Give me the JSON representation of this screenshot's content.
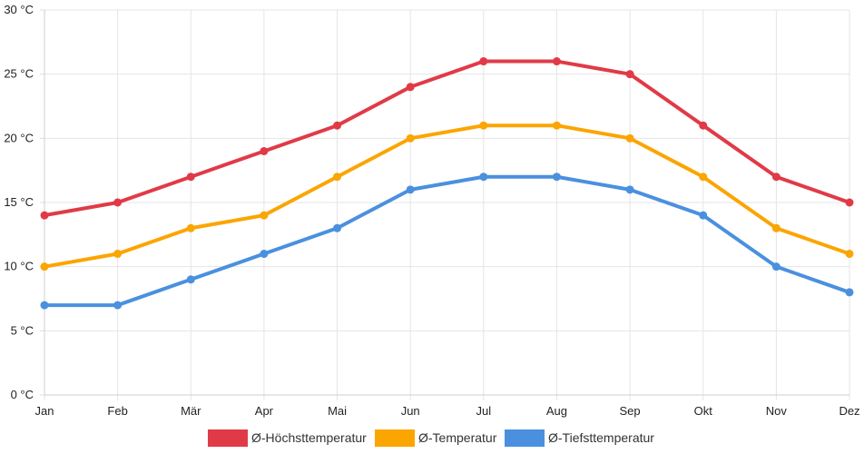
{
  "chart_data": {
    "type": "line",
    "categories": [
      "Jan",
      "Feb",
      "Mär",
      "Apr",
      "Mai",
      "Jun",
      "Jul",
      "Aug",
      "Sep",
      "Okt",
      "Nov",
      "Dez"
    ],
    "series": [
      {
        "name": "Ø-Höchsttemperatur",
        "color": "#E13A47",
        "values": [
          14,
          15,
          17,
          19,
          21,
          24,
          26,
          26,
          25,
          21,
          17,
          15
        ]
      },
      {
        "name": "Ø-Temperatur",
        "color": "#FBA500",
        "values": [
          10,
          11,
          13,
          14,
          17,
          20,
          21,
          21,
          20,
          17,
          13,
          11
        ]
      },
      {
        "name": "Ø-Tiefsttemperatur",
        "color": "#4A90DF",
        "values": [
          7,
          7,
          9,
          11,
          13,
          16,
          17,
          17,
          16,
          14,
          10,
          8
        ]
      }
    ],
    "y_ticks": [
      "0 °C",
      "5 °C",
      "10 °C",
      "15 °C",
      "20 °C",
      "25 °C",
      "30 °C"
    ],
    "y_tick_values": [
      0,
      5,
      10,
      15,
      20,
      25,
      30
    ],
    "ylim": [
      0,
      30
    ],
    "grid": true,
    "legend": "bottom",
    "title": "",
    "xlabel": "",
    "ylabel": ""
  }
}
